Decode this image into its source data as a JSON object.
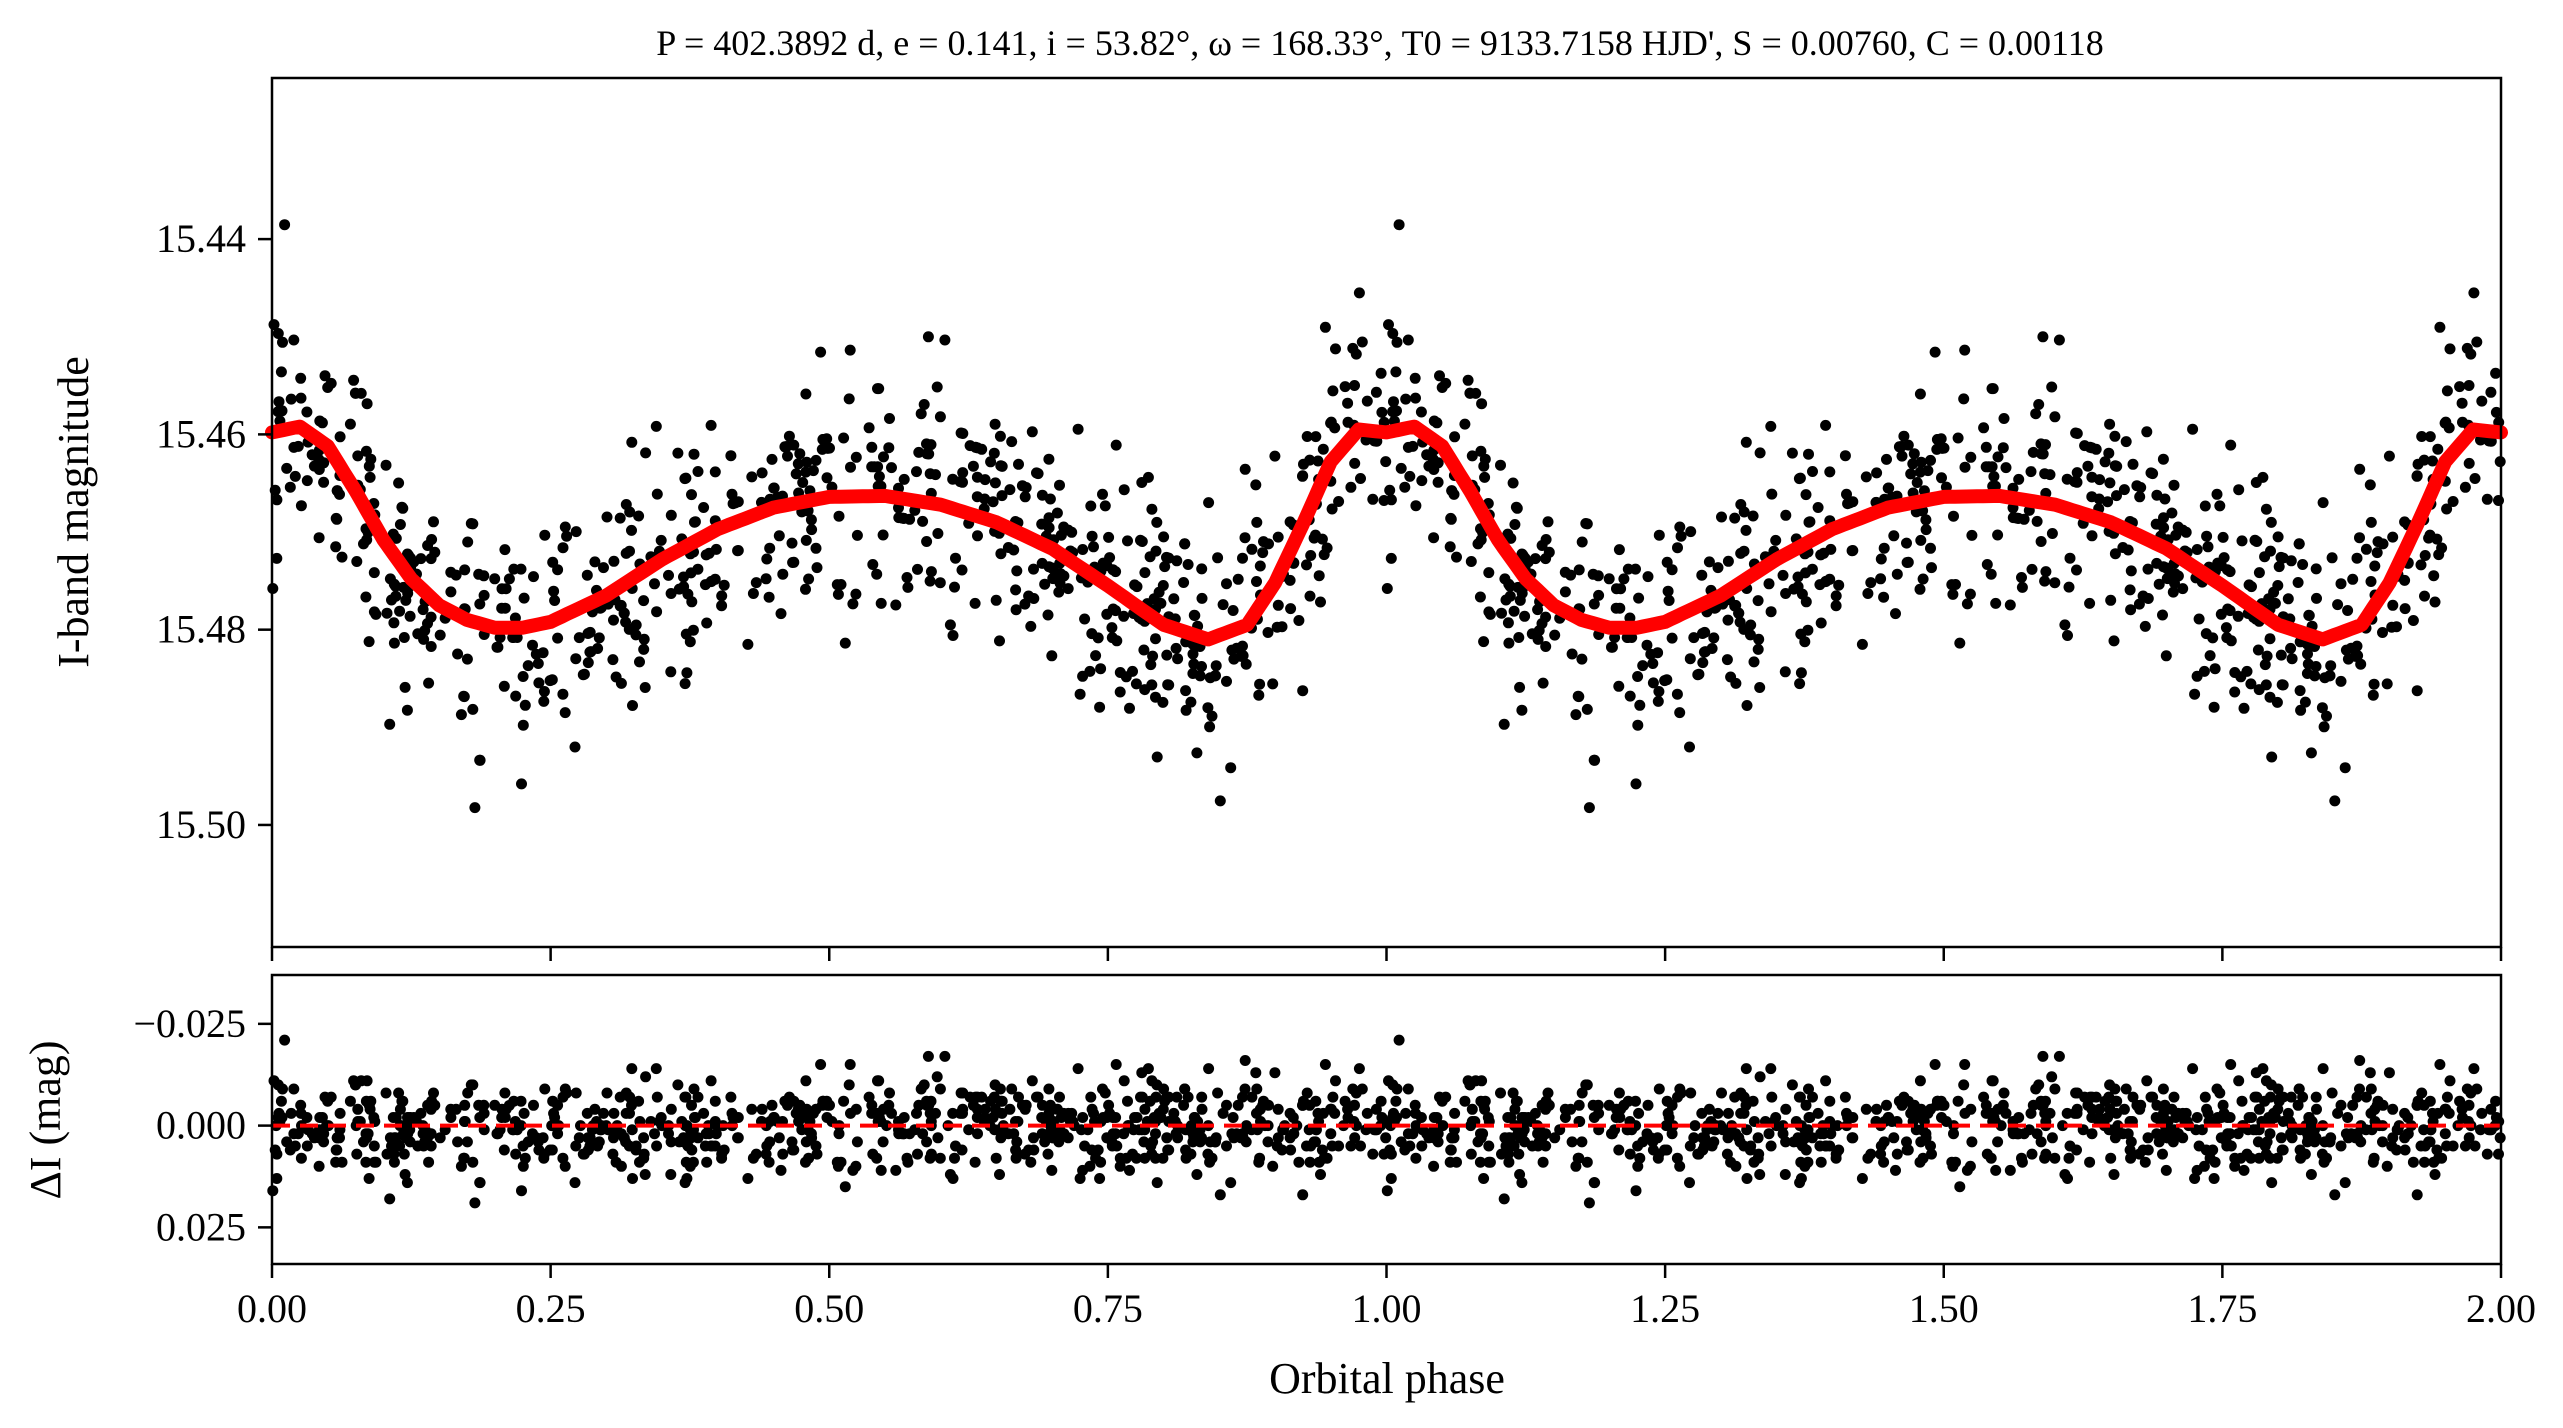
{
  "chart_data": [
    {
      "type": "scatter",
      "panel": "main",
      "title": "P = 402.3892 d, e = 0.141, i = 53.82°, ω = 168.33°, T0 = 9133.7158 HJD', S = 0.00760, C = 0.00118",
      "xlabel": "Orbital phase",
      "ylabel": "I-band magnitude",
      "xlim": [
        0.0,
        2.0
      ],
      "ylim": [
        15.5125,
        15.4235
      ],
      "y_inverted": true,
      "yticks": [
        "15.44",
        "15.46",
        "15.48",
        "15.50"
      ],
      "ytick_values": [
        15.44,
        15.46,
        15.48,
        15.5
      ],
      "model": {
        "name": "model fit",
        "color": "#ff0000",
        "x": [
          0.0,
          0.025,
          0.05,
          0.075,
          0.1,
          0.125,
          0.15,
          0.175,
          0.2,
          0.225,
          0.25,
          0.3,
          0.35,
          0.4,
          0.45,
          0.5,
          0.55,
          0.6,
          0.65,
          0.7,
          0.75,
          0.8,
          0.84,
          0.875,
          0.9,
          0.925,
          0.95,
          0.975,
          1.0,
          1.025,
          1.05,
          1.075,
          1.1,
          1.125,
          1.15,
          1.175,
          1.2,
          1.225,
          1.25,
          1.3,
          1.35,
          1.4,
          1.45,
          1.5,
          1.55,
          1.6,
          1.65,
          1.7,
          1.75,
          1.8,
          1.84,
          1.875,
          1.9,
          1.925,
          1.95,
          1.975,
          2.0
        ],
        "y": [
          15.4598,
          15.4592,
          15.4612,
          15.4658,
          15.4708,
          15.4748,
          15.4775,
          15.479,
          15.4798,
          15.4798,
          15.4792,
          15.4765,
          15.4728,
          15.4697,
          15.4675,
          15.4664,
          15.4663,
          15.4672,
          15.469,
          15.4717,
          15.4755,
          15.4795,
          15.481,
          15.4795,
          15.4752,
          15.4692,
          15.4628,
          15.4595,
          15.4598,
          15.4592,
          15.4612,
          15.4658,
          15.4708,
          15.4748,
          15.4775,
          15.479,
          15.4798,
          15.4798,
          15.4792,
          15.4765,
          15.4728,
          15.4697,
          15.4675,
          15.4664,
          15.4663,
          15.4672,
          15.469,
          15.4717,
          15.4755,
          15.4795,
          15.481,
          15.4795,
          15.4752,
          15.4692,
          15.4628,
          15.4595,
          15.4598
        ]
      },
      "data_points": {
        "name": "observations",
        "color": "#000000",
        "n_per_cycle": 780,
        "scatter_sigma": 0.006
      }
    },
    {
      "type": "scatter",
      "panel": "residuals",
      "xlabel": "Orbital phase",
      "ylabel": "ΔI (mag)",
      "xlim": [
        0.0,
        2.0
      ],
      "ylim": [
        0.034,
        -0.037
      ],
      "y_inverted": true,
      "xticks": [
        "0.00",
        "0.25",
        "0.50",
        "0.75",
        "1.00",
        "1.25",
        "1.50",
        "1.75",
        "2.00"
      ],
      "xtick_values": [
        0.0,
        0.25,
        0.5,
        0.75,
        1.0,
        1.25,
        1.5,
        1.75,
        2.0
      ],
      "yticks": [
        "−0.025",
        "0.000",
        "0.025"
      ],
      "ytick_values": [
        -0.025,
        0.0,
        0.025
      ],
      "zero_line": {
        "y": 0.0,
        "color": "#ff0000",
        "style": "dashed"
      },
      "data_points": {
        "name": "residuals",
        "color": "#000000",
        "scatter_sigma": 0.006
      }
    }
  ]
}
